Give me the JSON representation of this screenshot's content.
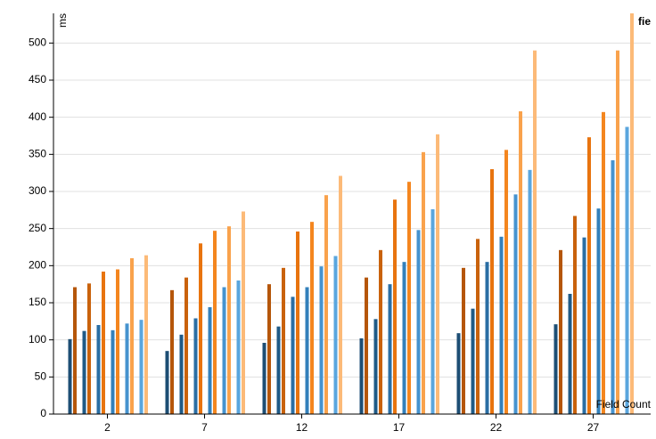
{
  "chart_data": {
    "type": "bar",
    "y_label": "ms",
    "x_label": "Field Count",
    "legend_label": "fie",
    "categories": [
      "2",
      "7",
      "12",
      "17",
      "22",
      "27"
    ],
    "series": [
      {
        "color": "#1d4e74",
        "values": [
          101,
          85,
          96,
          102,
          109,
          121
        ]
      },
      {
        "color": "#b5560a",
        "values": [
          171,
          167,
          175,
          184,
          197,
          221
        ]
      },
      {
        "color": "#1f5a86",
        "values": [
          112,
          107,
          118,
          128,
          142,
          162
        ]
      },
      {
        "color": "#c9620c",
        "values": [
          176,
          184,
          197,
          221,
          236,
          267
        ]
      },
      {
        "color": "#2a6ea4",
        "values": [
          120,
          129,
          158,
          175,
          205,
          238
        ]
      },
      {
        "color": "#e8740f",
        "values": [
          192,
          230,
          246,
          289,
          330,
          373
        ]
      },
      {
        "color": "#3380bb",
        "values": [
          113,
          144,
          171,
          205,
          239,
          277
        ]
      },
      {
        "color": "#f4861f",
        "values": [
          195,
          247,
          259,
          313,
          356,
          407
        ]
      },
      {
        "color": "#4693cf",
        "values": [
          122,
          171,
          199,
          248,
          296,
          342
        ]
      },
      {
        "color": "#f9a24c",
        "values": [
          210,
          253,
          295,
          353,
          408,
          490
        ]
      },
      {
        "color": "#5aa6de",
        "values": [
          127,
          180,
          213,
          276,
          329,
          387
        ]
      },
      {
        "color": "#fcba78",
        "values": [
          214,
          273,
          321,
          377,
          490,
          540
        ]
      }
    ],
    "ylim": [
      0,
      540
    ],
    "yticks": [
      0,
      50,
      100,
      150,
      200,
      250,
      300,
      350,
      400,
      450,
      500
    ],
    "grid": true
  }
}
